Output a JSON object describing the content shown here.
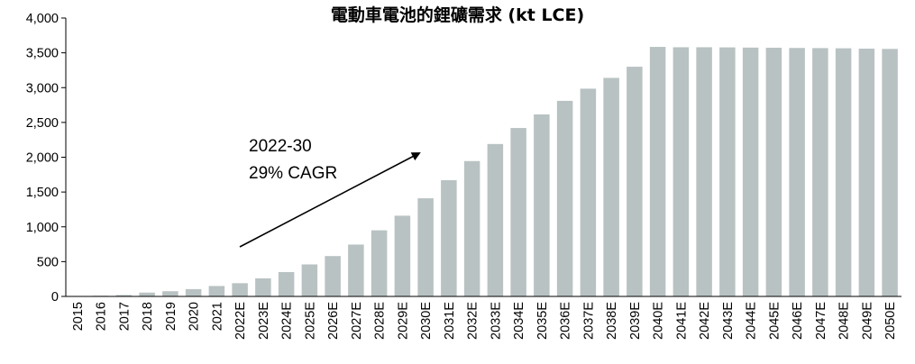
{
  "chart_data": {
    "type": "bar",
    "title": "電動車電池的鋰礦需求 (kt LCE)",
    "xlabel": "",
    "ylabel": "",
    "ylim": [
      0,
      4000
    ],
    "yticks": [
      "0",
      "500",
      "1,000",
      "1,500",
      "2,000",
      "2,500",
      "3,000",
      "3,500",
      "4,000"
    ],
    "grid": false,
    "categories": [
      "2015",
      "2016",
      "2017",
      "2018",
      "2019",
      "2020",
      "2021",
      "2022E",
      "2023E",
      "2024E",
      "2025E",
      "2026E",
      "2027E",
      "2028E",
      "2029E",
      "2030E",
      "2031E",
      "2032E",
      "2033E",
      "2034E",
      "2035E",
      "2036E",
      "2037E",
      "2038E",
      "2039E",
      "2040E",
      "2041E",
      "2042E",
      "2043E",
      "2044E",
      "2045E",
      "2046E",
      "2047E",
      "2048E",
      "2049E",
      "2050E"
    ],
    "values": [
      5,
      10,
      20,
      55,
      75,
      105,
      150,
      190,
      260,
      350,
      460,
      580,
      745,
      950,
      1160,
      1410,
      1670,
      1945,
      2190,
      2420,
      2615,
      2810,
      2985,
      3140,
      3300,
      3585,
      3580,
      3580,
      3578,
      3575,
      3573,
      3570,
      3568,
      3565,
      3560,
      3556
    ],
    "bar_color": "#b9c2c2",
    "annotation": {
      "lines": [
        "2022-30",
        "29% CAGR"
      ]
    }
  }
}
